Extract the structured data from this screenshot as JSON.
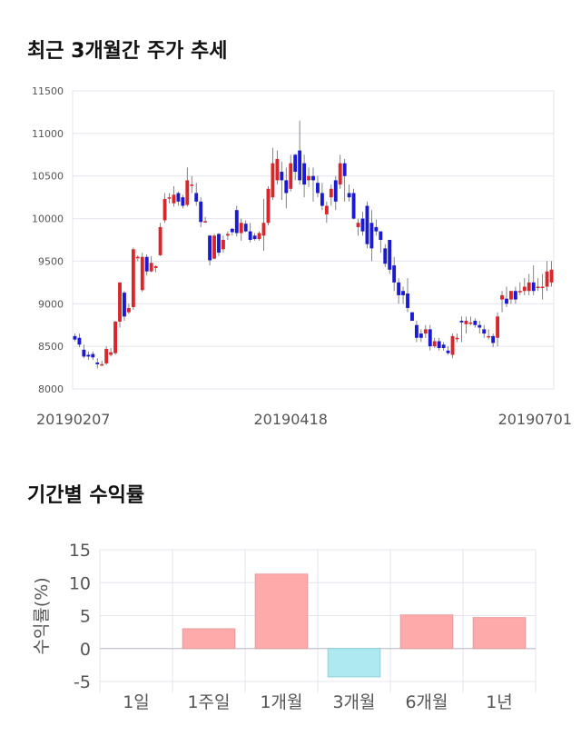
{
  "sections": {
    "price_title": "최근 3개월간 주가 추세",
    "returns_title": "기간별 수익률"
  },
  "colors": {
    "up": "#d8262a",
    "down": "#1a1ad0",
    "positive_bar": "#ffaaaa",
    "negative_bar": "#aee8f0",
    "grid": "#e4e4ef"
  },
  "chart_data": [
    {
      "type": "candlestick",
      "title": "최근 3개월간 주가 추세",
      "ylim": [
        8000,
        11500
      ],
      "y_ticks": [
        "11500",
        "11000",
        "10500",
        "10000",
        "9500",
        "9000",
        "8500",
        "8000"
      ],
      "x_tick_labels": [
        "20190207",
        "20190418",
        "20190701"
      ],
      "x_tick_positions": [
        0,
        48,
        98
      ],
      "grid": true,
      "candles": [
        [
          8620,
          8580,
          8650,
          8560
        ],
        [
          8600,
          8520,
          8650,
          8490
        ],
        [
          8460,
          8380,
          8520,
          8360
        ],
        [
          8400,
          8380,
          8440,
          8340
        ],
        [
          8410,
          8370,
          8440,
          8340
        ],
        [
          8310,
          8290,
          8360,
          8240
        ],
        [
          8290,
          8290,
          8330,
          8270
        ],
        [
          8300,
          8470,
          8500,
          8280
        ],
        [
          8400,
          8430,
          8480,
          8380
        ],
        [
          8420,
          8790,
          8800,
          8400
        ],
        [
          8790,
          9250,
          9250,
          8720
        ],
        [
          9130,
          8850,
          9150,
          8800
        ],
        [
          8900,
          8950,
          9000,
          8880
        ],
        [
          8960,
          9640,
          9660,
          8930
        ],
        [
          9550,
          9550,
          9570,
          9500
        ],
        [
          9160,
          9550,
          9600,
          9140
        ],
        [
          9550,
          9380,
          9580,
          9330
        ],
        [
          9380,
          9480,
          9560,
          9370
        ],
        [
          9420,
          9440,
          9450,
          9370
        ],
        [
          9570,
          9900,
          9950,
          9560
        ],
        [
          9980,
          10230,
          10300,
          9950
        ],
        [
          10250,
          10250,
          10300,
          10180
        ],
        [
          10180,
          10280,
          10380,
          10140
        ],
        [
          10300,
          10200,
          10320,
          10150
        ],
        [
          10250,
          10150,
          10280,
          10120
        ],
        [
          10160,
          10450,
          10600,
          10140
        ],
        [
          10390,
          10400,
          10500,
          10300
        ],
        [
          10300,
          10200,
          10420,
          10150
        ],
        [
          10200,
          9960,
          10250,
          9900
        ],
        [
          9960,
          9970,
          10020,
          9950
        ],
        [
          9800,
          9510,
          9810,
          9450
        ],
        [
          9530,
          9800,
          9820,
          9520
        ],
        [
          9820,
          9600,
          9830,
          9560
        ],
        [
          9640,
          9750,
          9800,
          9600
        ],
        [
          9800,
          9820,
          9850,
          9750
        ],
        [
          9880,
          9840,
          9890,
          9800
        ],
        [
          10100,
          9830,
          10150,
          9790
        ],
        [
          9830,
          9950,
          10000,
          9740
        ],
        [
          9940,
          9850,
          9980,
          9840
        ],
        [
          9850,
          9750,
          9950,
          9720
        ],
        [
          9800,
          9760,
          9830,
          9740
        ],
        [
          9760,
          9830,
          9850,
          9740
        ],
        [
          9800,
          9950,
          10230,
          9620
        ],
        [
          9950,
          10350,
          10380,
          9920
        ],
        [
          10250,
          10650,
          10830,
          10220
        ],
        [
          10450,
          10700,
          10800,
          10400
        ],
        [
          10550,
          10450,
          10670,
          10220
        ],
        [
          10450,
          10300,
          10600,
          10120
        ],
        [
          10350,
          10650,
          10750,
          10320
        ],
        [
          10750,
          10550,
          10760,
          10450
        ],
        [
          10800,
          10450,
          11150,
          10400
        ],
        [
          10650,
          10400,
          10750,
          10250
        ],
        [
          10450,
          10500,
          10600,
          10370
        ],
        [
          10500,
          10450,
          10600,
          10200
        ],
        [
          10420,
          10300,
          10500,
          10250
        ],
        [
          10300,
          10150,
          10420,
          10100
        ],
        [
          10050,
          10150,
          10200,
          9950
        ],
        [
          10250,
          10350,
          10400,
          10150
        ],
        [
          10450,
          10200,
          10500,
          10100
        ],
        [
          10400,
          10650,
          10750,
          10350
        ],
        [
          10650,
          10500,
          10700,
          10200
        ],
        [
          10300,
          10250,
          10400,
          10200
        ],
        [
          10300,
          10000,
          10350,
          9990
        ],
        [
          9900,
          9950,
          10000,
          9800
        ],
        [
          10000,
          9850,
          10080,
          9800
        ],
        [
          10150,
          9700,
          10200,
          9650
        ],
        [
          9950,
          9650,
          10100,
          9500
        ],
        [
          9900,
          9850,
          9990,
          9800
        ],
        [
          9850,
          9750,
          9850,
          9600
        ],
        [
          9650,
          9470,
          9700,
          9430
        ],
        [
          9750,
          9400,
          9750,
          9350
        ],
        [
          9450,
          9250,
          9550,
          9150
        ],
        [
          9250,
          9100,
          9300,
          9000
        ],
        [
          9150,
          9100,
          9200,
          9000
        ],
        [
          9120,
          8950,
          9300,
          8900
        ],
        [
          8900,
          8800,
          8900,
          8800
        ],
        [
          8750,
          8600,
          8800,
          8550
        ],
        [
          8650,
          8600,
          8700,
          8550
        ],
        [
          8650,
          8700,
          8750,
          8600
        ],
        [
          8700,
          8500,
          8750,
          8450
        ],
        [
          8500,
          8560,
          8600,
          8480
        ],
        [
          8560,
          8480,
          8600,
          8450
        ],
        [
          8520,
          8480,
          8550,
          8450
        ],
        [
          8450,
          8420,
          8500,
          8400
        ],
        [
          8400,
          8620,
          8650,
          8360
        ],
        [
          8600,
          8600,
          8650,
          8550
        ],
        [
          8800,
          8780,
          8850,
          8550
        ],
        [
          8760,
          8800,
          8850,
          8650
        ],
        [
          8780,
          8780,
          8850,
          8750
        ],
        [
          8800,
          8750,
          8830,
          8720
        ],
        [
          8750,
          8720,
          8800,
          8650
        ],
        [
          8700,
          8650,
          8750,
          8600
        ],
        [
          8620,
          8620,
          8700,
          8580
        ],
        [
          8620,
          8540,
          8650,
          8490
        ],
        [
          8600,
          8850,
          8900,
          8500
        ],
        [
          9050,
          9100,
          9150,
          8900
        ],
        [
          9060,
          9000,
          9200,
          8960
        ],
        [
          9050,
          9150,
          9150,
          9000
        ],
        [
          9150,
          9050,
          9200,
          9000
        ],
        [
          9150,
          9150,
          9250,
          9100
        ],
        [
          9150,
          9200,
          9300,
          9100
        ],
        [
          9150,
          9250,
          9350,
          9100
        ],
        [
          9250,
          9150,
          9450,
          9100
        ],
        [
          9200,
          9200,
          9300,
          9150
        ],
        [
          9200,
          9200,
          9350,
          9050
        ],
        [
          9200,
          9380,
          9500,
          9150
        ],
        [
          9250,
          9400,
          9500,
          9200
        ]
      ]
    },
    {
      "type": "bar",
      "title": "기간별 수익률",
      "categories": [
        "1일",
        "1주일",
        "1개월",
        "3개월",
        "6개월",
        "1년"
      ],
      "values": [
        0,
        3.0,
        11.3,
        -4.3,
        5.1,
        4.7
      ],
      "ylabel": "수익률(%)",
      "ylim": [
        -5,
        15
      ],
      "y_ticks": [
        "15",
        "10",
        "5",
        "0",
        "-5"
      ],
      "grid": true
    }
  ]
}
